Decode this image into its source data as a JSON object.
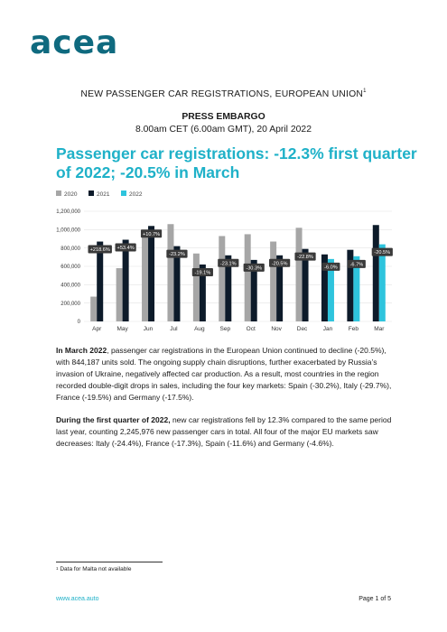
{
  "header": {
    "logo_text": "acea",
    "doc_title": "NEW PASSENGER CAR REGISTRATIONS, EUROPEAN UNION",
    "doc_title_footnote_mark": "1"
  },
  "embargo": {
    "title": "PRESS EMBARGO",
    "time": "8.00am CET (6.00am GMT), 20 April 2022"
  },
  "headline": "Passenger car registrations: -12.3% first quarter of 2022; -20.5% in March",
  "chart_data": {
    "type": "bar",
    "legend_position": "top-left",
    "grid": true,
    "ylim": [
      0,
      1200000
    ],
    "yticks": [
      "0",
      "200,000",
      "400,000",
      "600,000",
      "800,000",
      "1,000,000",
      "1,200,000"
    ],
    "categories": [
      "Apr",
      "May",
      "Jun",
      "Jul",
      "Aug",
      "Sep",
      "Oct",
      "Nov",
      "Dec",
      "Jan",
      "Feb",
      "Mar"
    ],
    "series": [
      {
        "name": "2020",
        "color": "#a6a6a6",
        "values": [
          270000,
          580000,
          940000,
          1060000,
          740000,
          930000,
          950000,
          870000,
          1020000,
          null,
          null,
          null
        ]
      },
      {
        "name": "2021",
        "color": "#0d1b2a",
        "values": [
          870000,
          890000,
          1040000,
          820000,
          620000,
          720000,
          670000,
          720000,
          790000,
          730000,
          780000,
          1050000
        ]
      },
      {
        "name": "2022",
        "color": "#2ec4dd",
        "values": [
          null,
          null,
          null,
          null,
          null,
          null,
          null,
          null,
          null,
          680000,
          710000,
          840000
        ]
      }
    ],
    "change_labels": [
      {
        "category": "Apr",
        "text": "+218.6%",
        "series": "2021"
      },
      {
        "category": "May",
        "text": "+53.4%",
        "series": "2021"
      },
      {
        "category": "Jun",
        "text": "+10.7%",
        "series": "2021"
      },
      {
        "category": "Jul",
        "text": "-23.2%",
        "series": "2021"
      },
      {
        "category": "Aug",
        "text": "-19.1%",
        "series": "2021"
      },
      {
        "category": "Sep",
        "text": "-23.1%",
        "series": "2021"
      },
      {
        "category": "Oct",
        "text": "-30.3%",
        "series": "2021"
      },
      {
        "category": "Nov",
        "text": "-20.5%",
        "series": "2021"
      },
      {
        "category": "Dec",
        "text": "-22.8%",
        "series": "2021"
      },
      {
        "category": "Jan",
        "text": "-6.0%",
        "series": "2022"
      },
      {
        "category": "Feb",
        "text": "-6.7%",
        "series": "2022"
      },
      {
        "category": "Mar",
        "text": "-20.5%",
        "series": "2022"
      }
    ]
  },
  "body": {
    "p1_lead": "In March 2022",
    "p1_text": ", passenger car registrations in the European Union continued to decline (-20.5%), with 844,187 units sold. The ongoing supply chain disruptions, further exacerbated by Russia’s invasion of Ukraine, negatively affected car production. As a result, most countries in the region recorded double-digit drops in sales, including the four key markets: Spain (-30.2%), Italy (-29.7%), France (-19.5%) and Germany (-17.5%).",
    "p2_lead": "During the first quarter of 2022,",
    "p2_text": " new car registrations fell by 12.3% compared to the same period last year, counting 2,245,976 new passenger cars in total. All four of the major EU markets saw decreases: Italy (-24.4%), France (-17.3%), Spain (-11.6%) and Germany (-4.6%)."
  },
  "footnote": {
    "mark": "1",
    "text": "Data for Malta not available"
  },
  "footer": {
    "link": "www.acea.auto",
    "page": "Page 1 of 5"
  }
}
